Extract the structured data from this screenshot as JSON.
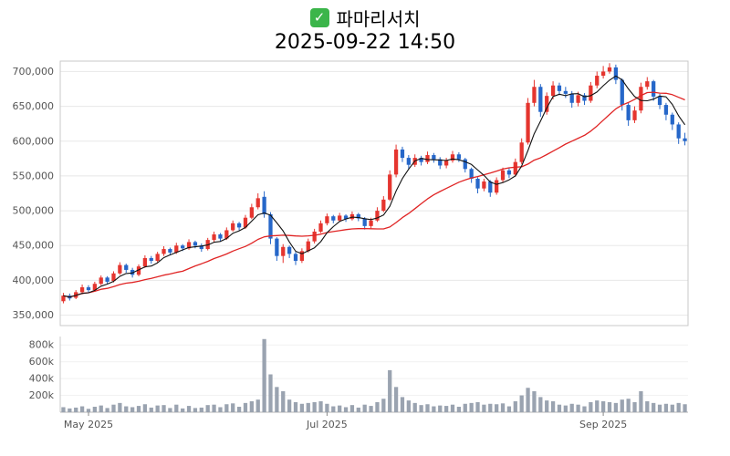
{
  "header": {
    "checkbox_glyph": "✓",
    "checkbox_color": "#3bb54a",
    "title": "파마리서치",
    "subtitle": "2025-09-22 14:50"
  },
  "chart_data": {
    "type": "candlestick",
    "title": "파마리서치",
    "timestamp": "2025-09-22 14:50",
    "panels": [
      "price",
      "volume"
    ],
    "x_axis": {
      "tick_labels": [
        "May 2025",
        "Jul 2025",
        "Sep 2025"
      ],
      "tick_indices": [
        4,
        42,
        86
      ]
    },
    "y_axis_price": {
      "tick_values": [
        350000,
        400000,
        450000,
        500000,
        550000,
        600000,
        650000,
        700000
      ],
      "tick_labels": [
        "350,000",
        "400,000",
        "450,000",
        "500,000",
        "550,000",
        "600,000",
        "650,000",
        "700,000"
      ],
      "range": [
        335000,
        715000
      ]
    },
    "y_axis_volume": {
      "tick_values": [
        200000,
        400000,
        600000,
        800000
      ],
      "tick_labels": [
        "200k",
        "400k",
        "600k",
        "800k"
      ],
      "range": [
        0,
        900000
      ]
    },
    "ma_periods": {
      "fast": 5,
      "slow": 20
    },
    "colors": {
      "up": "#e5352f",
      "down": "#2667c9",
      "volume": "#9aa3b0",
      "ma_fast": "#111111",
      "ma_slow": "#e02424",
      "grid": "#e8e8e8",
      "axis": "#c9c9c9",
      "label": "#555555"
    },
    "candle_format": [
      "open",
      "high",
      "low",
      "close",
      "volume"
    ],
    "candles": [
      [
        370000,
        382000,
        367000,
        378000,
        60000
      ],
      [
        378000,
        381000,
        371000,
        374000,
        45000
      ],
      [
        375000,
        386000,
        373000,
        383000,
        55000
      ],
      [
        383000,
        394000,
        380000,
        390000,
        70000
      ],
      [
        390000,
        393000,
        383000,
        386000,
        40000
      ],
      [
        386000,
        398000,
        384000,
        395000,
        65000
      ],
      [
        395000,
        407000,
        393000,
        404000,
        80000
      ],
      [
        404000,
        406000,
        395000,
        398000,
        50000
      ],
      [
        399000,
        413000,
        397000,
        410000,
        90000
      ],
      [
        410000,
        426000,
        408000,
        422000,
        110000
      ],
      [
        422000,
        424000,
        411000,
        415000,
        70000
      ],
      [
        415000,
        418000,
        404000,
        408000,
        60000
      ],
      [
        408000,
        423000,
        406000,
        420000,
        75000
      ],
      [
        420000,
        436000,
        418000,
        432000,
        95000
      ],
      [
        432000,
        435000,
        424000,
        428000,
        55000
      ],
      [
        428000,
        441000,
        426000,
        438000,
        80000
      ],
      [
        438000,
        449000,
        435000,
        445000,
        85000
      ],
      [
        445000,
        447000,
        436000,
        440000,
        50000
      ],
      [
        440000,
        454000,
        438000,
        450000,
        90000
      ],
      [
        450000,
        452000,
        442000,
        446000,
        45000
      ],
      [
        446000,
        459000,
        444000,
        455000,
        75000
      ],
      [
        455000,
        457000,
        446000,
        450000,
        50000
      ],
      [
        450000,
        453000,
        441000,
        445000,
        55000
      ],
      [
        445000,
        461000,
        443000,
        458000,
        85000
      ],
      [
        458000,
        470000,
        455000,
        466000,
        90000
      ],
      [
        466000,
        468000,
        456000,
        460000,
        60000
      ],
      [
        460000,
        476000,
        458000,
        472000,
        95000
      ],
      [
        472000,
        486000,
        470000,
        482000,
        105000
      ],
      [
        482000,
        484000,
        472000,
        476000,
        65000
      ],
      [
        476000,
        494000,
        474000,
        490000,
        110000
      ],
      [
        490000,
        510000,
        488000,
        505000,
        130000
      ],
      [
        505000,
        525000,
        502000,
        518000,
        150000
      ],
      [
        520000,
        528000,
        490000,
        495000,
        870000
      ],
      [
        495000,
        498000,
        452000,
        460000,
        450000
      ],
      [
        460000,
        462000,
        428000,
        435000,
        300000
      ],
      [
        435000,
        452000,
        425000,
        448000,
        250000
      ],
      [
        448000,
        450000,
        432000,
        438000,
        150000
      ],
      [
        438000,
        441000,
        422000,
        428000,
        120000
      ],
      [
        428000,
        446000,
        425000,
        442000,
        100000
      ],
      [
        442000,
        460000,
        440000,
        456000,
        110000
      ],
      [
        456000,
        474000,
        453000,
        470000,
        120000
      ],
      [
        470000,
        486000,
        468000,
        482000,
        130000
      ],
      [
        482000,
        496000,
        479000,
        492000,
        100000
      ],
      [
        492000,
        494000,
        482000,
        486000,
        70000
      ],
      [
        486000,
        497000,
        484000,
        493000,
        80000
      ],
      [
        493000,
        495000,
        484000,
        488000,
        60000
      ],
      [
        488000,
        499000,
        486000,
        495000,
        85000
      ],
      [
        495000,
        497000,
        485000,
        489000,
        55000
      ],
      [
        489000,
        491000,
        473000,
        478000,
        90000
      ],
      [
        478000,
        490000,
        475000,
        486000,
        75000
      ],
      [
        486000,
        505000,
        484000,
        500000,
        120000
      ],
      [
        500000,
        521000,
        498000,
        516000,
        160000
      ],
      [
        516000,
        558000,
        514000,
        552000,
        500000
      ],
      [
        552000,
        595000,
        548000,
        588000,
        300000
      ],
      [
        588000,
        592000,
        570000,
        576000,
        180000
      ],
      [
        576000,
        580000,
        560000,
        566000,
        140000
      ],
      [
        566000,
        581000,
        563000,
        576000,
        110000
      ],
      [
        576000,
        579000,
        565000,
        570000,
        85000
      ],
      [
        570000,
        585000,
        567000,
        580000,
        95000
      ],
      [
        580000,
        583000,
        569000,
        574000,
        70000
      ],
      [
        574000,
        577000,
        560000,
        565000,
        80000
      ],
      [
        565000,
        576000,
        561000,
        572000,
        75000
      ],
      [
        572000,
        586000,
        569000,
        581000,
        90000
      ],
      [
        581000,
        584000,
        570000,
        574000,
        65000
      ],
      [
        574000,
        576000,
        555000,
        560000,
        100000
      ],
      [
        560000,
        562000,
        540000,
        546000,
        110000
      ],
      [
        546000,
        548000,
        525000,
        532000,
        120000
      ],
      [
        532000,
        546000,
        528000,
        542000,
        90000
      ],
      [
        542000,
        544000,
        520000,
        526000,
        100000
      ],
      [
        526000,
        548000,
        523000,
        544000,
        95000
      ],
      [
        544000,
        562000,
        541000,
        558000,
        105000
      ],
      [
        558000,
        561000,
        547000,
        552000,
        70000
      ],
      [
        552000,
        575000,
        549000,
        570000,
        130000
      ],
      [
        570000,
        604000,
        567000,
        598000,
        200000
      ],
      [
        598000,
        662000,
        595000,
        655000,
        290000
      ],
      [
        655000,
        688000,
        650000,
        678000,
        250000
      ],
      [
        678000,
        682000,
        635000,
        642000,
        180000
      ],
      [
        642000,
        670000,
        638000,
        665000,
        140000
      ],
      [
        665000,
        686000,
        660000,
        680000,
        130000
      ],
      [
        680000,
        684000,
        666000,
        672000,
        90000
      ],
      [
        672000,
        678000,
        662000,
        668000,
        80000
      ],
      [
        668000,
        672000,
        648000,
        655000,
        100000
      ],
      [
        655000,
        671000,
        650000,
        666000,
        90000
      ],
      [
        666000,
        669000,
        652000,
        658000,
        70000
      ],
      [
        658000,
        685000,
        655000,
        680000,
        120000
      ],
      [
        680000,
        700000,
        676000,
        694000,
        140000
      ],
      [
        694000,
        708000,
        690000,
        700000,
        130000
      ],
      [
        700000,
        712000,
        697000,
        706000,
        120000
      ],
      [
        706000,
        710000,
        682000,
        688000,
        110000
      ],
      [
        688000,
        690000,
        644000,
        652000,
        150000
      ],
      [
        652000,
        656000,
        622000,
        630000,
        160000
      ],
      [
        630000,
        650000,
        626000,
        644000,
        120000
      ],
      [
        644000,
        684000,
        640000,
        678000,
        250000
      ],
      [
        678000,
        692000,
        674000,
        686000,
        130000
      ],
      [
        686000,
        688000,
        658000,
        664000,
        110000
      ],
      [
        664000,
        668000,
        646000,
        652000,
        90000
      ],
      [
        652000,
        655000,
        630000,
        638000,
        100000
      ],
      [
        638000,
        641000,
        616000,
        624000,
        90000
      ],
      [
        624000,
        627000,
        596000,
        604000,
        110000
      ],
      [
        604000,
        612000,
        594000,
        600000,
        95000
      ]
    ]
  }
}
